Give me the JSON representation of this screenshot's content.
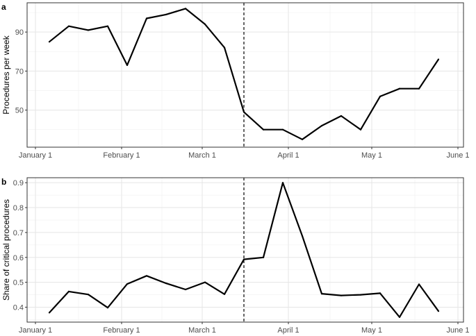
{
  "chart_data": [
    {
      "panel": "a",
      "type": "line",
      "ylabel": "Procedures per week",
      "xlabel": "",
      "x_ticks": [
        "January 1",
        "February 1",
        "March 1",
        "April 1",
        "May 1",
        "June 1"
      ],
      "y_ticks": [
        50,
        70,
        90
      ],
      "ylim": [
        31,
        105
      ],
      "grid": true,
      "vline_x": "2020-03-16",
      "series": [
        {
          "x": [
            "2020-01-06",
            "2020-01-13",
            "2020-01-20",
            "2020-01-27",
            "2020-02-03",
            "2020-02-10",
            "2020-02-17",
            "2020-02-24",
            "2020-03-02",
            "2020-03-09",
            "2020-03-16",
            "2020-03-23",
            "2020-03-30",
            "2020-04-06",
            "2020-04-13",
            "2020-04-20",
            "2020-04-27",
            "2020-05-04",
            "2020-05-11",
            "2020-05-18",
            "2020-05-25"
          ],
          "values": [
            85,
            93,
            91,
            93,
            73,
            97,
            99,
            102,
            94,
            82,
            49,
            40,
            40,
            35,
            42,
            47,
            40,
            57,
            61,
            61,
            76
          ]
        }
      ]
    },
    {
      "panel": "b",
      "type": "line",
      "ylabel": "Share of critical procedures",
      "xlabel": "",
      "x_ticks": [
        "January 1",
        "February 1",
        "March 1",
        "April 1",
        "May 1",
        "June 1"
      ],
      "y_ticks": [
        0.4,
        0.5,
        0.6,
        0.7,
        0.8,
        0.9
      ],
      "ylim": [
        0.34,
        0.92
      ],
      "grid": true,
      "vline_x": "2020-03-16",
      "series": [
        {
          "x": [
            "2020-01-06",
            "2020-01-13",
            "2020-01-20",
            "2020-01-27",
            "2020-02-03",
            "2020-02-10",
            "2020-02-17",
            "2020-02-24",
            "2020-03-02",
            "2020-03-09",
            "2020-03-16",
            "2020-03-23",
            "2020-03-30",
            "2020-04-06",
            "2020-04-13",
            "2020-04-20",
            "2020-04-27",
            "2020-05-04",
            "2020-05-11",
            "2020-05-18",
            "2020-05-25"
          ],
          "values": [
            0.378,
            0.463,
            0.451,
            0.398,
            0.493,
            0.526,
            0.496,
            0.471,
            0.5,
            0.452,
            0.592,
            0.6,
            0.9,
            0.686,
            0.454,
            0.447,
            0.45,
            0.456,
            0.36,
            0.492,
            0.384
          ]
        }
      ]
    }
  ]
}
